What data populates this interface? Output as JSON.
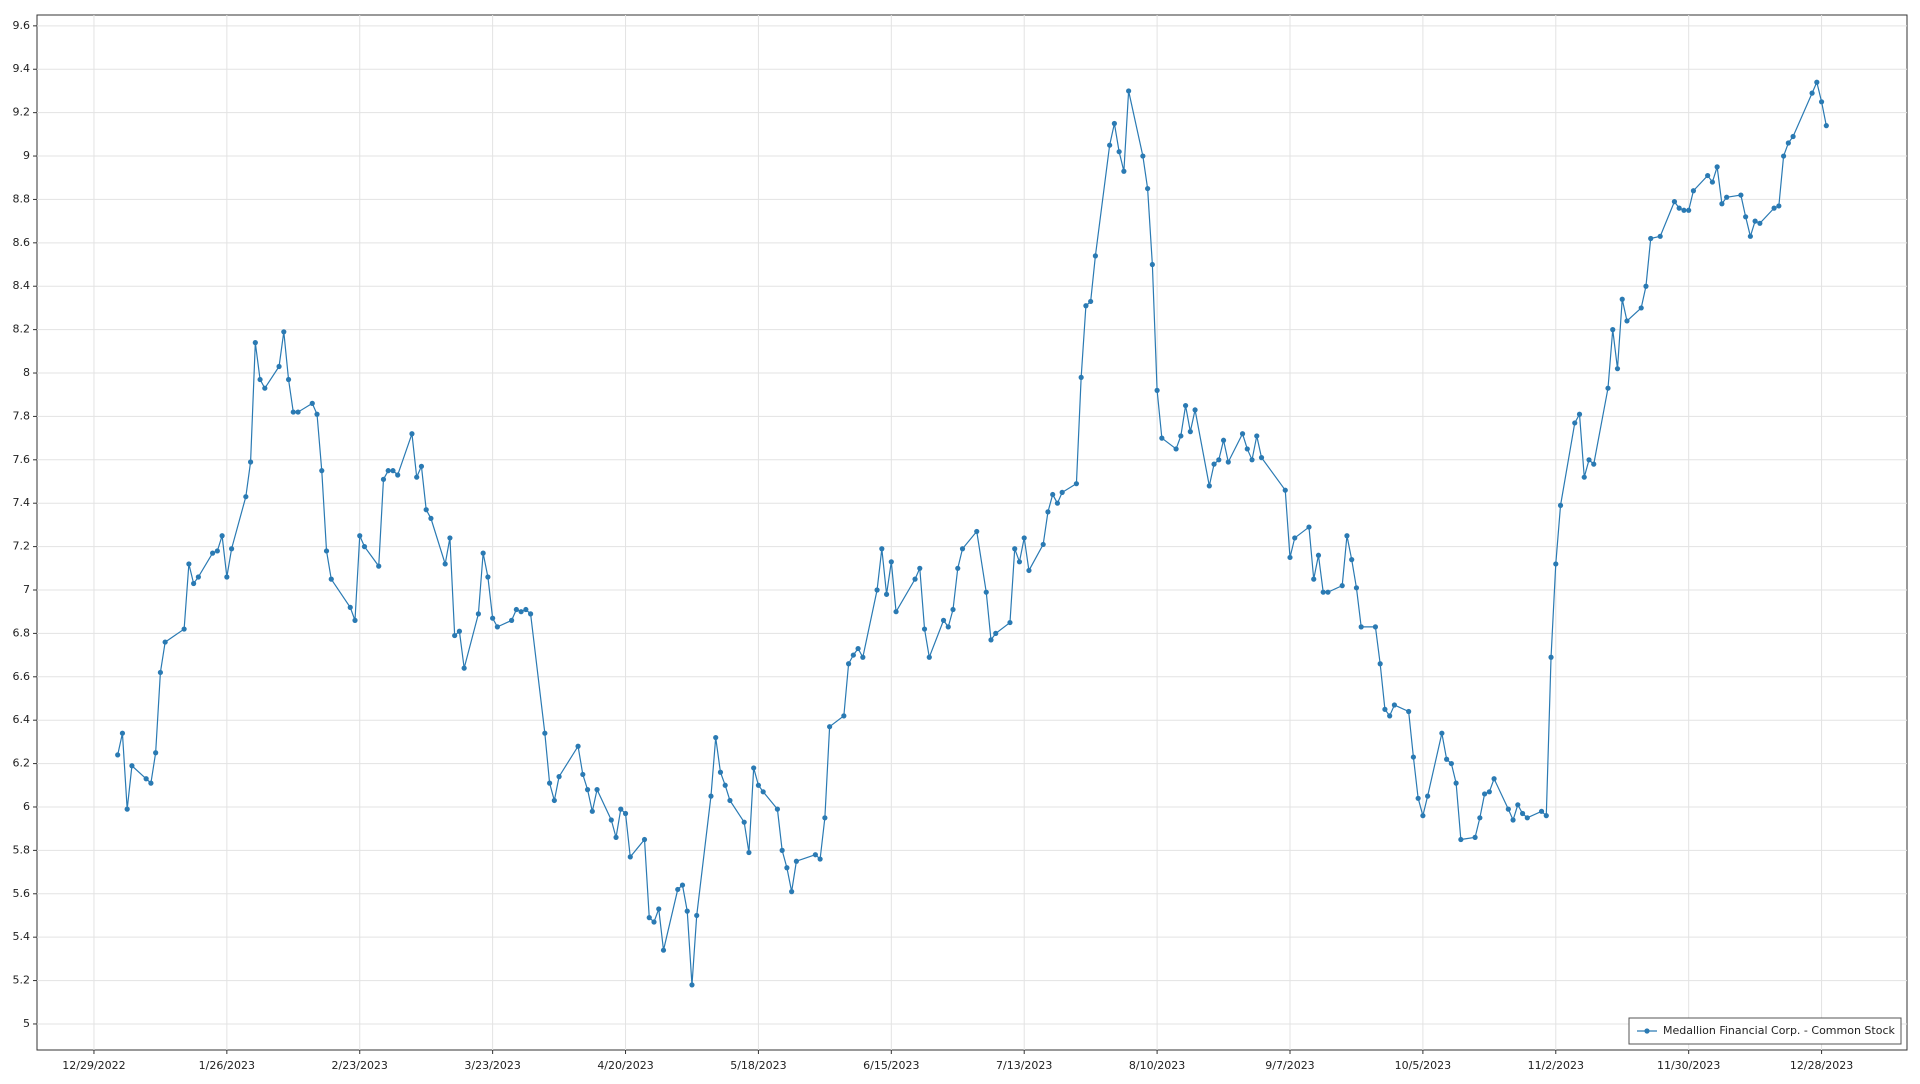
{
  "chart_data": {
    "type": "line",
    "x": [
      "2023-01-03",
      "2023-01-04",
      "2023-01-05",
      "2023-01-06",
      "2023-01-09",
      "2023-01-10",
      "2023-01-11",
      "2023-01-12",
      "2023-01-13",
      "2023-01-17",
      "2023-01-18",
      "2023-01-19",
      "2023-01-20",
      "2023-01-23",
      "2023-01-24",
      "2023-01-25",
      "2023-01-26",
      "2023-01-27",
      "2023-01-30",
      "2023-01-31",
      "2023-02-01",
      "2023-02-02",
      "2023-02-03",
      "2023-02-06",
      "2023-02-07",
      "2023-02-08",
      "2023-02-09",
      "2023-02-10",
      "2023-02-13",
      "2023-02-14",
      "2023-02-15",
      "2023-02-16",
      "2023-02-17",
      "2023-02-21",
      "2023-02-22",
      "2023-02-23",
      "2023-02-24",
      "2023-02-27",
      "2023-02-28",
      "2023-03-01",
      "2023-03-02",
      "2023-03-03",
      "2023-03-06",
      "2023-03-07",
      "2023-03-08",
      "2023-03-09",
      "2023-03-10",
      "2023-03-13",
      "2023-03-14",
      "2023-03-15",
      "2023-03-16",
      "2023-03-17",
      "2023-03-20",
      "2023-03-21",
      "2023-03-22",
      "2023-03-23",
      "2023-03-24",
      "2023-03-27",
      "2023-03-28",
      "2023-03-29",
      "2023-03-30",
      "2023-03-31",
      "2023-04-03",
      "2023-04-04",
      "2023-04-05",
      "2023-04-06",
      "2023-04-10",
      "2023-04-11",
      "2023-04-12",
      "2023-04-13",
      "2023-04-14",
      "2023-04-17",
      "2023-04-18",
      "2023-04-19",
      "2023-04-20",
      "2023-04-21",
      "2023-04-24",
      "2023-04-25",
      "2023-04-26",
      "2023-04-27",
      "2023-04-28",
      "2023-05-01",
      "2023-05-02",
      "2023-05-03",
      "2023-05-04",
      "2023-05-05",
      "2023-05-08",
      "2023-05-09",
      "2023-05-10",
      "2023-05-11",
      "2023-05-12",
      "2023-05-15",
      "2023-05-16",
      "2023-05-17",
      "2023-05-18",
      "2023-05-19",
      "2023-05-22",
      "2023-05-23",
      "2023-05-24",
      "2023-05-25",
      "2023-05-26",
      "2023-05-30",
      "2023-05-31",
      "2023-06-01",
      "2023-06-02",
      "2023-06-05",
      "2023-06-06",
      "2023-06-07",
      "2023-06-08",
      "2023-06-09",
      "2023-06-12",
      "2023-06-13",
      "2023-06-14",
      "2023-06-15",
      "2023-06-16",
      "2023-06-20",
      "2023-06-21",
      "2023-06-22",
      "2023-06-23",
      "2023-06-26",
      "2023-06-27",
      "2023-06-28",
      "2023-06-29",
      "2023-06-30",
      "2023-07-03",
      "2023-07-05",
      "2023-07-06",
      "2023-07-07",
      "2023-07-10",
      "2023-07-11",
      "2023-07-12",
      "2023-07-13",
      "2023-07-14",
      "2023-07-17",
      "2023-07-18",
      "2023-07-19",
      "2023-07-20",
      "2023-07-21",
      "2023-07-24",
      "2023-07-25",
      "2023-07-26",
      "2023-07-27",
      "2023-07-28",
      "2023-07-31",
      "2023-08-01",
      "2023-08-02",
      "2023-08-03",
      "2023-08-04",
      "2023-08-07",
      "2023-08-08",
      "2023-08-09",
      "2023-08-10",
      "2023-08-11",
      "2023-08-14",
      "2023-08-15",
      "2023-08-16",
      "2023-08-17",
      "2023-08-18",
      "2023-08-21",
      "2023-08-22",
      "2023-08-23",
      "2023-08-24",
      "2023-08-25",
      "2023-08-28",
      "2023-08-29",
      "2023-08-30",
      "2023-08-31",
      "2023-09-01",
      "2023-09-06",
      "2023-09-07",
      "2023-09-08",
      "2023-09-11",
      "2023-09-12",
      "2023-09-13",
      "2023-09-14",
      "2023-09-15",
      "2023-09-18",
      "2023-09-19",
      "2023-09-20",
      "2023-09-21",
      "2023-09-22",
      "2023-09-25",
      "2023-09-26",
      "2023-09-27",
      "2023-09-28",
      "2023-09-29",
      "2023-10-02",
      "2023-10-03",
      "2023-10-04",
      "2023-10-05",
      "2023-10-06",
      "2023-10-09",
      "2023-10-10",
      "2023-10-11",
      "2023-10-12",
      "2023-10-13",
      "2023-10-16",
      "2023-10-17",
      "2023-10-18",
      "2023-10-19",
      "2023-10-20",
      "2023-10-23",
      "2023-10-24",
      "2023-10-25",
      "2023-10-26",
      "2023-10-27",
      "2023-10-30",
      "2023-10-31",
      "2023-11-01",
      "2023-11-02",
      "2023-11-03",
      "2023-11-06",
      "2023-11-07",
      "2023-11-08",
      "2023-11-09",
      "2023-11-10",
      "2023-11-13",
      "2023-11-14",
      "2023-11-15",
      "2023-11-16",
      "2023-11-17",
      "2023-11-20",
      "2023-11-21",
      "2023-11-22",
      "2023-11-24",
      "2023-11-27",
      "2023-11-28",
      "2023-11-29",
      "2023-11-30",
      "2023-12-01",
      "2023-12-04",
      "2023-12-05",
      "2023-12-06",
      "2023-12-07",
      "2023-12-08",
      "2023-12-11",
      "2023-12-12",
      "2023-12-13",
      "2023-12-14",
      "2023-12-15",
      "2023-12-18",
      "2023-12-19",
      "2023-12-20",
      "2023-12-21",
      "2023-12-22",
      "2023-12-26",
      "2023-12-27",
      "2023-12-28",
      "2023-12-29"
    ],
    "series": [
      {
        "name": "Medallion Financial Corp. - Common Stock",
        "color": "#2a7ab3",
        "values": [
          6.24,
          6.34,
          5.99,
          6.19,
          6.13,
          6.11,
          6.25,
          6.62,
          6.76,
          6.82,
          7.12,
          7.03,
          7.06,
          7.17,
          7.18,
          7.25,
          7.06,
          7.19,
          7.43,
          7.59,
          8.14,
          7.97,
          7.93,
          8.03,
          8.19,
          7.97,
          7.82,
          7.82,
          7.86,
          7.81,
          7.55,
          7.18,
          7.05,
          6.92,
          6.86,
          7.25,
          7.2,
          7.11,
          7.51,
          7.55,
          7.55,
          7.53,
          7.72,
          7.52,
          7.57,
          7.37,
          7.33,
          7.12,
          7.24,
          6.79,
          6.81,
          6.64,
          6.89,
          7.17,
          7.06,
          6.87,
          6.83,
          6.86,
          6.91,
          6.9,
          6.91,
          6.89,
          6.34,
          6.11,
          6.03,
          6.14,
          6.28,
          6.15,
          6.08,
          5.98,
          6.08,
          5.94,
          5.86,
          5.99,
          5.97,
          5.77,
          5.85,
          5.49,
          5.47,
          5.53,
          5.34,
          5.62,
          5.64,
          5.52,
          5.18,
          5.5,
          6.05,
          6.32,
          6.16,
          6.1,
          6.03,
          5.93,
          5.79,
          6.18,
          6.1,
          6.07,
          5.99,
          5.8,
          5.72,
          5.61,
          5.75,
          5.78,
          5.76,
          5.95,
          6.37,
          6.42,
          6.66,
          6.7,
          6.73,
          6.69,
          7.0,
          7.19,
          6.98,
          7.13,
          6.9,
          7.05,
          7.1,
          6.82,
          6.69,
          6.86,
          6.83,
          6.91,
          7.1,
          7.19,
          7.27,
          6.99,
          6.77,
          6.8,
          6.85,
          7.19,
          7.13,
          7.24,
          7.09,
          7.21,
          7.36,
          7.44,
          7.4,
          7.45,
          7.49,
          7.98,
          8.31,
          8.33,
          8.54,
          9.05,
          9.15,
          9.02,
          8.93,
          9.3,
          9.0,
          8.85,
          8.5,
          7.92,
          7.7,
          7.65,
          7.71,
          7.85,
          7.73,
          7.83,
          7.48,
          7.58,
          7.6,
          7.69,
          7.59,
          7.72,
          7.65,
          7.6,
          7.71,
          7.61,
          7.46,
          7.15,
          7.24,
          7.29,
          7.05,
          7.16,
          6.99,
          6.99,
          7.02,
          7.25,
          7.14,
          7.01,
          6.83,
          6.83,
          6.66,
          6.45,
          6.42,
          6.47,
          6.44,
          6.23,
          6.04,
          5.96,
          6.05,
          6.34,
          6.22,
          6.2,
          6.11,
          5.85,
          5.86,
          5.95,
          6.06,
          6.07,
          6.13,
          5.99,
          5.94,
          6.01,
          5.97,
          5.95,
          5.98,
          5.96,
          6.69,
          7.12,
          7.39,
          7.77,
          7.81,
          7.52,
          7.6,
          7.58,
          7.93,
          8.2,
          8.02,
          8.34,
          8.24,
          8.3,
          8.4,
          8.62,
          8.63,
          8.79,
          8.76,
          8.75,
          8.75,
          8.84,
          8.91,
          8.88,
          8.95,
          8.78,
          8.81,
          8.82,
          8.72,
          8.63,
          8.7,
          8.69,
          8.76,
          8.77,
          9.0,
          9.06,
          9.09,
          9.29,
          9.34,
          9.25,
          9.14
        ]
      }
    ],
    "xlim": [
      "2022-12-17",
      "2024-01-15"
    ],
    "xticks": [
      {
        "value": "2022-12-29",
        "label": "12/29/2022"
      },
      {
        "value": "2023-01-26",
        "label": "1/26/2023"
      },
      {
        "value": "2023-02-23",
        "label": "2/23/2023"
      },
      {
        "value": "2023-03-23",
        "label": "3/23/2023"
      },
      {
        "value": "2023-04-20",
        "label": "4/20/2023"
      },
      {
        "value": "2023-05-18",
        "label": "5/18/2023"
      },
      {
        "value": "2023-06-15",
        "label": "6/15/2023"
      },
      {
        "value": "2023-07-13",
        "label": "7/13/2023"
      },
      {
        "value": "2023-08-10",
        "label": "8/10/2023"
      },
      {
        "value": "2023-09-07",
        "label": "9/7/2023"
      },
      {
        "value": "2023-10-05",
        "label": "10/5/2023"
      },
      {
        "value": "2023-11-02",
        "label": "11/2/2023"
      },
      {
        "value": "2023-11-30",
        "label": "11/30/2023"
      },
      {
        "value": "2023-12-28",
        "label": "12/28/2023"
      }
    ],
    "ylim": [
      4.88,
      9.65
    ],
    "yticks": [
      5,
      5.2,
      5.4,
      5.6,
      5.8,
      6,
      6.2,
      6.4,
      6.6,
      6.8,
      7,
      7.2,
      7.4,
      7.6,
      7.8,
      8,
      8.2,
      8.4,
      8.6,
      8.8,
      9,
      9.2,
      9.4,
      9.6
    ],
    "grid": true,
    "legend": "bottom-right"
  }
}
